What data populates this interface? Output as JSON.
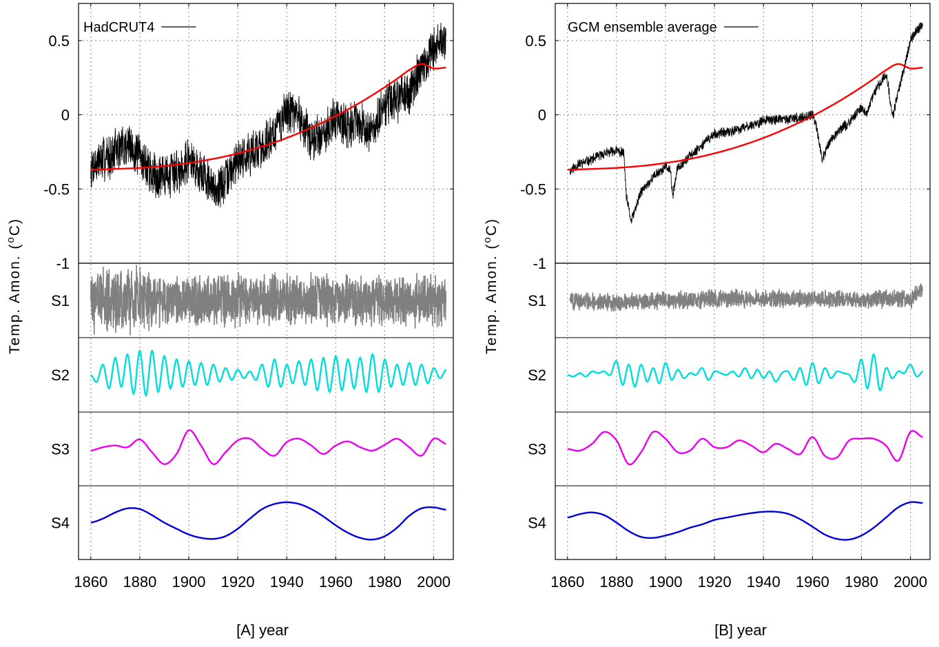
{
  "chart_data": [
    {
      "type": "line",
      "panel_label": "[A] year",
      "ylabel": "Temp. Amon. (°C)",
      "xlim": [
        1855,
        2008
      ],
      "ylim": [
        -1,
        0.75
      ],
      "x_ticks": [
        1860,
        1880,
        1900,
        1920,
        1940,
        1960,
        1980,
        2000
      ],
      "y_ticks": [
        0.5,
        0,
        -0.5,
        -1
      ],
      "y_tick_labels": [
        "0.5",
        "0",
        "-0.5",
        "-1"
      ],
      "grid": true,
      "legend_position": "top-left",
      "top_series": [
        {
          "name": "HadCRUT4",
          "color": "#000000",
          "x": [
            1860,
            1865,
            1870,
            1875,
            1880,
            1885,
            1890,
            1895,
            1900,
            1905,
            1910,
            1915,
            1920,
            1925,
            1930,
            1935,
            1940,
            1945,
            1950,
            1955,
            1960,
            1965,
            1970,
            1975,
            1980,
            1985,
            1990,
            1995,
            2000,
            2005
          ],
          "y": [
            -0.35,
            -0.3,
            -0.25,
            -0.2,
            -0.28,
            -0.4,
            -0.42,
            -0.38,
            -0.3,
            -0.38,
            -0.5,
            -0.45,
            -0.3,
            -0.25,
            -0.22,
            -0.12,
            0.02,
            0.0,
            -0.18,
            -0.12,
            -0.02,
            -0.08,
            -0.05,
            -0.12,
            0.05,
            0.1,
            0.15,
            0.3,
            0.45,
            0.52
          ],
          "noise": 0.17
        },
        {
          "name": "",
          "color": "#ff0000",
          "x": [
            1860,
            1865,
            1870,
            1875,
            1880,
            1885,
            1890,
            1895,
            1900,
            1905,
            1910,
            1915,
            1920,
            1925,
            1930,
            1935,
            1940,
            1945,
            1950,
            1955,
            1960,
            1965,
            1970,
            1975,
            1980,
            1985,
            1990,
            1995,
            2000,
            2005
          ],
          "y": [
            -0.37,
            -0.368,
            -0.365,
            -0.362,
            -0.358,
            -0.352,
            -0.345,
            -0.336,
            -0.325,
            -0.312,
            -0.297,
            -0.28,
            -0.26,
            -0.238,
            -0.213,
            -0.186,
            -0.156,
            -0.123,
            -0.087,
            -0.049,
            -0.008,
            0.036,
            0.083,
            0.133,
            0.186,
            0.242,
            0.301,
            0.342,
            0.312,
            0.318
          ]
        }
      ],
      "components": [
        {
          "name": "S4",
          "color": "#0000dd",
          "x": [
            1860,
            1865,
            1870,
            1875,
            1880,
            1885,
            1890,
            1895,
            1900,
            1905,
            1910,
            1915,
            1920,
            1925,
            1930,
            1935,
            1940,
            1945,
            1950,
            1955,
            1960,
            1965,
            1970,
            1975,
            1980,
            1985,
            1990,
            1995,
            2000,
            2005
          ],
          "y": [
            0.0,
            0.12,
            0.3,
            0.42,
            0.4,
            0.22,
            0.0,
            -0.18,
            -0.35,
            -0.45,
            -0.48,
            -0.4,
            -0.18,
            0.12,
            0.4,
            0.55,
            0.6,
            0.55,
            0.4,
            0.18,
            -0.08,
            -0.3,
            -0.45,
            -0.5,
            -0.4,
            -0.15,
            0.2,
            0.42,
            0.45,
            0.38
          ]
        },
        {
          "name": "S3",
          "color": "#ee00ee",
          "x": [
            1860,
            1865,
            1870,
            1875,
            1880,
            1885,
            1890,
            1895,
            1900,
            1905,
            1910,
            1915,
            1920,
            1925,
            1930,
            1935,
            1940,
            1945,
            1950,
            1955,
            1960,
            1965,
            1970,
            1975,
            1980,
            1985,
            1990,
            1995,
            2000,
            2005
          ],
          "y": [
            -0.05,
            0.05,
            0.1,
            0.05,
            0.28,
            -0.1,
            -0.45,
            -0.15,
            0.55,
            0.1,
            -0.45,
            -0.1,
            0.25,
            0.3,
            0.0,
            -0.2,
            0.2,
            0.3,
            0.1,
            -0.15,
            0.1,
            0.22,
            0.05,
            -0.05,
            0.12,
            0.3,
            0.05,
            -0.2,
            0.3,
            0.15
          ]
        },
        {
          "name": "S2",
          "color": "#00dddd",
          "x": [
            1860,
            1862.5,
            1865,
            1867.5,
            1870,
            1872.5,
            1875,
            1877.5,
            1880,
            1882.5,
            1885,
            1887.5,
            1890,
            1892.5,
            1895,
            1897.5,
            1900,
            1902.5,
            1905,
            1907.5,
            1910,
            1912.5,
            1915,
            1917.5,
            1920,
            1922.5,
            1925,
            1927.5,
            1930,
            1932.5,
            1935,
            1937.5,
            1940,
            1942.5,
            1945,
            1947.5,
            1950,
            1952.5,
            1955,
            1957.5,
            1960,
            1962.5,
            1965,
            1967.5,
            1970,
            1972.5,
            1975,
            1977.5,
            1980,
            1982.5,
            1985,
            1987.5,
            1990,
            1992.5,
            1995,
            1997.5,
            2000,
            2002.5,
            2005
          ],
          "y": [
            0.0,
            -0.2,
            0.3,
            -0.4,
            0.5,
            -0.35,
            0.6,
            -0.55,
            0.7,
            -0.6,
            0.7,
            -0.5,
            0.55,
            -0.4,
            0.45,
            -0.35,
            0.4,
            -0.3,
            0.35,
            -0.3,
            0.3,
            -0.2,
            0.2,
            -0.15,
            0.15,
            -0.1,
            0.1,
            -0.15,
            0.3,
            -0.35,
            0.45,
            -0.35,
            0.3,
            -0.25,
            0.4,
            -0.3,
            0.45,
            -0.45,
            0.5,
            -0.5,
            0.55,
            -0.45,
            0.45,
            -0.4,
            0.5,
            -0.5,
            0.6,
            -0.5,
            0.45,
            -0.35,
            0.3,
            -0.3,
            0.35,
            -0.3,
            0.3,
            -0.25,
            0.2,
            -0.1,
            0.15
          ]
        },
        {
          "name": "S1",
          "color": "#808080",
          "x": [
            1860,
            2005
          ],
          "y": [
            0,
            0
          ],
          "noise": 0.85
        }
      ]
    },
    {
      "type": "line",
      "panel_label": "[B]  year",
      "ylabel": "Temp. Amon. (°C)",
      "xlim": [
        1855,
        2008
      ],
      "ylim": [
        -1,
        0.75
      ],
      "x_ticks": [
        1860,
        1880,
        1900,
        1920,
        1940,
        1960,
        1980,
        2000
      ],
      "y_ticks": [
        0.5,
        0,
        -0.5,
        -1
      ],
      "y_tick_labels": [
        "0.5",
        "0",
        "-0.5",
        "-1"
      ],
      "grid": true,
      "legend_position": "top-left",
      "top_series": [
        {
          "name": "GCM ensemble average",
          "color": "#000000",
          "x": [
            1861,
            1865,
            1870,
            1875,
            1880,
            1883,
            1884,
            1886,
            1890,
            1895,
            1900,
            1902,
            1903,
            1905,
            1910,
            1915,
            1920,
            1925,
            1930,
            1935,
            1940,
            1945,
            1950,
            1955,
            1960,
            1962,
            1963,
            1964,
            1967,
            1970,
            1975,
            1980,
            1982,
            1985,
            1990,
            1991,
            1992,
            1993,
            1995,
            2000,
            2005
          ],
          "y": [
            -0.38,
            -0.33,
            -0.3,
            -0.26,
            -0.24,
            -0.26,
            -0.55,
            -0.72,
            -0.52,
            -0.42,
            -0.35,
            -0.38,
            -0.55,
            -0.35,
            -0.28,
            -0.2,
            -0.13,
            -0.12,
            -0.1,
            -0.07,
            -0.04,
            -0.03,
            -0.03,
            -0.02,
            0.0,
            -0.1,
            -0.22,
            -0.3,
            -0.18,
            -0.12,
            -0.05,
            0.05,
            0.0,
            0.14,
            0.28,
            0.2,
            0.05,
            0.0,
            0.15,
            0.5,
            0.62
          ],
          "noise": 0.04
        },
        {
          "name": "",
          "color": "#ff0000",
          "x": [
            1860,
            1865,
            1870,
            1875,
            1880,
            1885,
            1890,
            1895,
            1900,
            1905,
            1910,
            1915,
            1920,
            1925,
            1930,
            1935,
            1940,
            1945,
            1950,
            1955,
            1960,
            1965,
            1970,
            1975,
            1980,
            1985,
            1990,
            1995,
            2000,
            2005
          ],
          "y": [
            -0.37,
            -0.368,
            -0.365,
            -0.362,
            -0.358,
            -0.352,
            -0.345,
            -0.336,
            -0.325,
            -0.312,
            -0.297,
            -0.28,
            -0.26,
            -0.238,
            -0.213,
            -0.186,
            -0.156,
            -0.123,
            -0.087,
            -0.049,
            -0.008,
            0.036,
            0.083,
            0.133,
            0.186,
            0.242,
            0.301,
            0.342,
            0.312,
            0.318
          ]
        }
      ],
      "components": [
        {
          "name": "S4",
          "color": "#0000dd",
          "x": [
            1860,
            1865,
            1870,
            1875,
            1880,
            1885,
            1890,
            1895,
            1900,
            1905,
            1910,
            1915,
            1920,
            1925,
            1930,
            1935,
            1940,
            1945,
            1950,
            1955,
            1960,
            1965,
            1970,
            1975,
            1980,
            1985,
            1990,
            1995,
            2000,
            2005
          ],
          "y": [
            0.15,
            0.25,
            0.3,
            0.22,
            0.0,
            -0.25,
            -0.42,
            -0.45,
            -0.38,
            -0.28,
            -0.15,
            -0.05,
            0.08,
            0.15,
            0.22,
            0.28,
            0.32,
            0.32,
            0.26,
            0.1,
            -0.12,
            -0.35,
            -0.48,
            -0.5,
            -0.38,
            -0.15,
            0.15,
            0.45,
            0.6,
            0.58
          ]
        },
        {
          "name": "S3",
          "color": "#ee00ee",
          "x": [
            1860,
            1865,
            1870,
            1875,
            1880,
            1885,
            1890,
            1895,
            1900,
            1905,
            1910,
            1915,
            1920,
            1925,
            1930,
            1935,
            1940,
            1945,
            1950,
            1955,
            1960,
            1965,
            1970,
            1975,
            1980,
            1985,
            1990,
            1995,
            2000,
            2005
          ],
          "y": [
            0.0,
            -0.05,
            0.15,
            0.5,
            0.25,
            -0.45,
            -0.1,
            0.5,
            0.3,
            -0.1,
            -0.05,
            0.3,
            0.05,
            0.05,
            0.25,
            0.1,
            -0.1,
            0.15,
            0.0,
            -0.15,
            0.35,
            -0.2,
            -0.25,
            0.25,
            0.3,
            0.3,
            0.1,
            -0.35,
            0.5,
            0.35
          ]
        },
        {
          "name": "S2",
          "color": "#00dddd",
          "x": [
            1860,
            1862.5,
            1865,
            1867.5,
            1870,
            1872.5,
            1875,
            1877.5,
            1880,
            1882.5,
            1885,
            1887.5,
            1890,
            1892.5,
            1895,
            1897.5,
            1900,
            1902.5,
            1905,
            1907.5,
            1910,
            1912.5,
            1915,
            1917.5,
            1920,
            1922.5,
            1925,
            1927.5,
            1930,
            1932.5,
            1935,
            1937.5,
            1940,
            1942.5,
            1945,
            1947.5,
            1950,
            1952.5,
            1955,
            1957.5,
            1960,
            1962.5,
            1965,
            1967.5,
            1970,
            1972.5,
            1975,
            1977.5,
            1980,
            1982.5,
            1985,
            1987.5,
            1990,
            1992.5,
            1995,
            1997.5,
            2000,
            2002.5,
            2005
          ],
          "y": [
            0.0,
            -0.05,
            0.05,
            -0.05,
            0.1,
            0.05,
            0.1,
            0.0,
            0.4,
            -0.3,
            0.3,
            -0.35,
            0.3,
            -0.2,
            0.2,
            -0.25,
            0.35,
            -0.15,
            0.15,
            -0.1,
            0.05,
            0.0,
            0.2,
            -0.15,
            0.1,
            0.05,
            0.0,
            0.1,
            -0.05,
            0.2,
            -0.1,
            0.15,
            -0.1,
            0.1,
            -0.2,
            0.05,
            0.1,
            -0.15,
            0.2,
            -0.3,
            0.35,
            -0.25,
            0.2,
            -0.1,
            0.1,
            0.05,
            0.0,
            -0.2,
            0.45,
            -0.4,
            0.6,
            -0.45,
            0.2,
            -0.1,
            0.1,
            0.05,
            0.3,
            -0.05,
            0.1
          ]
        },
        {
          "name": "S1",
          "color": "#808080",
          "x": [
            1861,
            1880,
            1900,
            1920,
            1960,
            1980,
            1990,
            1995,
            2000,
            2005
          ],
          "y": [
            0,
            -0.05,
            0.0,
            0.05,
            0.05,
            0.0,
            0.05,
            0.05,
            0.0,
            0.35
          ],
          "noise": 0.3
        }
      ]
    }
  ]
}
